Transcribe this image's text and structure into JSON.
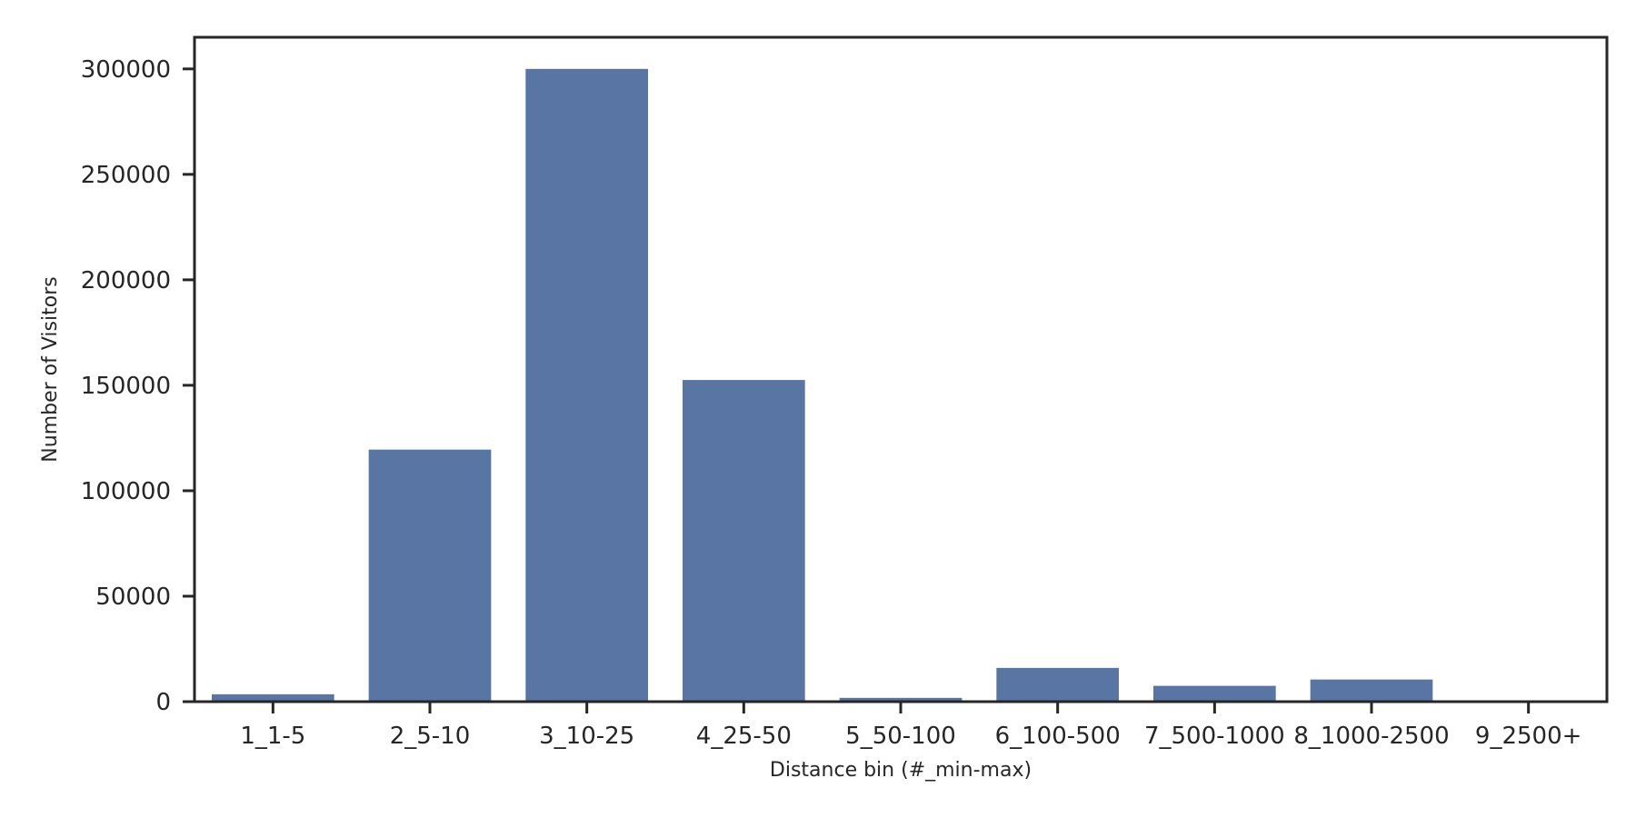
{
  "chart_data": {
    "type": "bar",
    "title": "",
    "xlabel": "Distance bin (#_min-max)",
    "ylabel": "Number of Visitors",
    "categories": [
      "1_1-5",
      "2_5-10",
      "3_10-25",
      "4_25-50",
      "5_50-100",
      "6_100-500",
      "7_500-1000",
      "8_1000-2500",
      "9_2500+"
    ],
    "values": [
      3500,
      119500,
      300000,
      152500,
      1800,
      16000,
      7500,
      10500,
      300
    ],
    "ylim": [
      0,
      315000
    ],
    "yticks": [
      0,
      50000,
      100000,
      150000,
      200000,
      250000,
      300000
    ],
    "bar_color": "#5975a4",
    "grid": false,
    "legend": "none"
  }
}
